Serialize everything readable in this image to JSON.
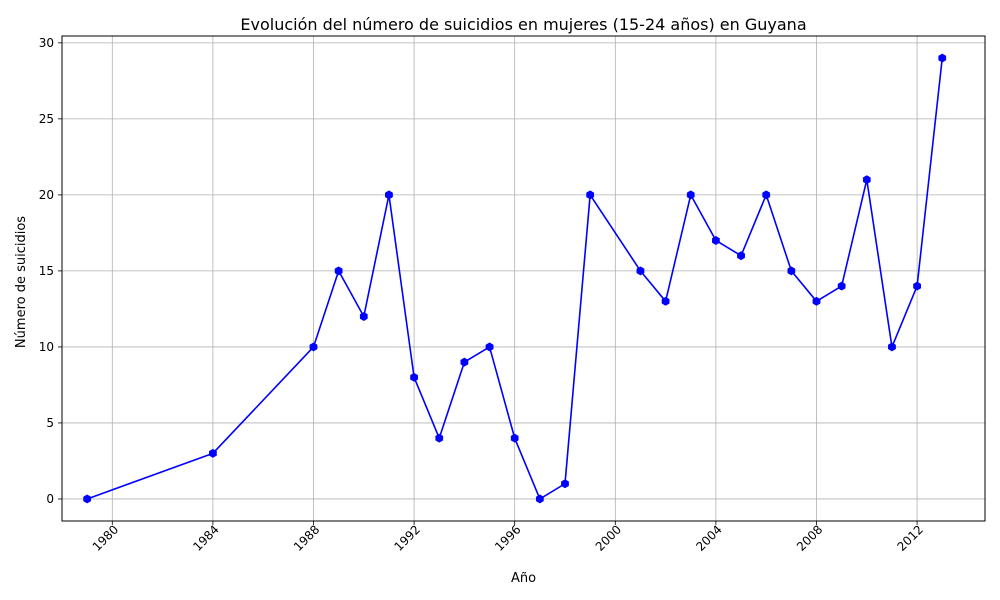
{
  "chart_data": {
    "type": "line",
    "title": "Evolución del número de suicidios en mujeres (15-24 años) en Guyana",
    "xlabel": "Año",
    "ylabel": "Número de suicidios",
    "xlim": [
      1978.0,
      2014.7
    ],
    "ylim": [
      -1.45,
      30.45
    ],
    "xticks": [
      1980,
      1984,
      1988,
      1992,
      1996,
      2000,
      2004,
      2008,
      2012
    ],
    "yticks": [
      0,
      5,
      10,
      15,
      20,
      25,
      30
    ],
    "grid": true,
    "line_color": "#0000ff",
    "marker": "hexagon",
    "series": [
      {
        "x": [
          1979,
          1984,
          1988,
          1989,
          1990,
          1991,
          1992,
          1993,
          1994,
          1995,
          1996,
          1997,
          1998,
          1999,
          2001,
          2002,
          2003,
          2004,
          2005,
          2006,
          2007,
          2008,
          2009,
          2010,
          2011,
          2012,
          2013
        ],
        "values": [
          0,
          3,
          10,
          15,
          12,
          20,
          8,
          4,
          9,
          10,
          4,
          0,
          1,
          20,
          15,
          13,
          20,
          17,
          16,
          20,
          15,
          13,
          14,
          21,
          10,
          14,
          29
        ]
      }
    ]
  }
}
